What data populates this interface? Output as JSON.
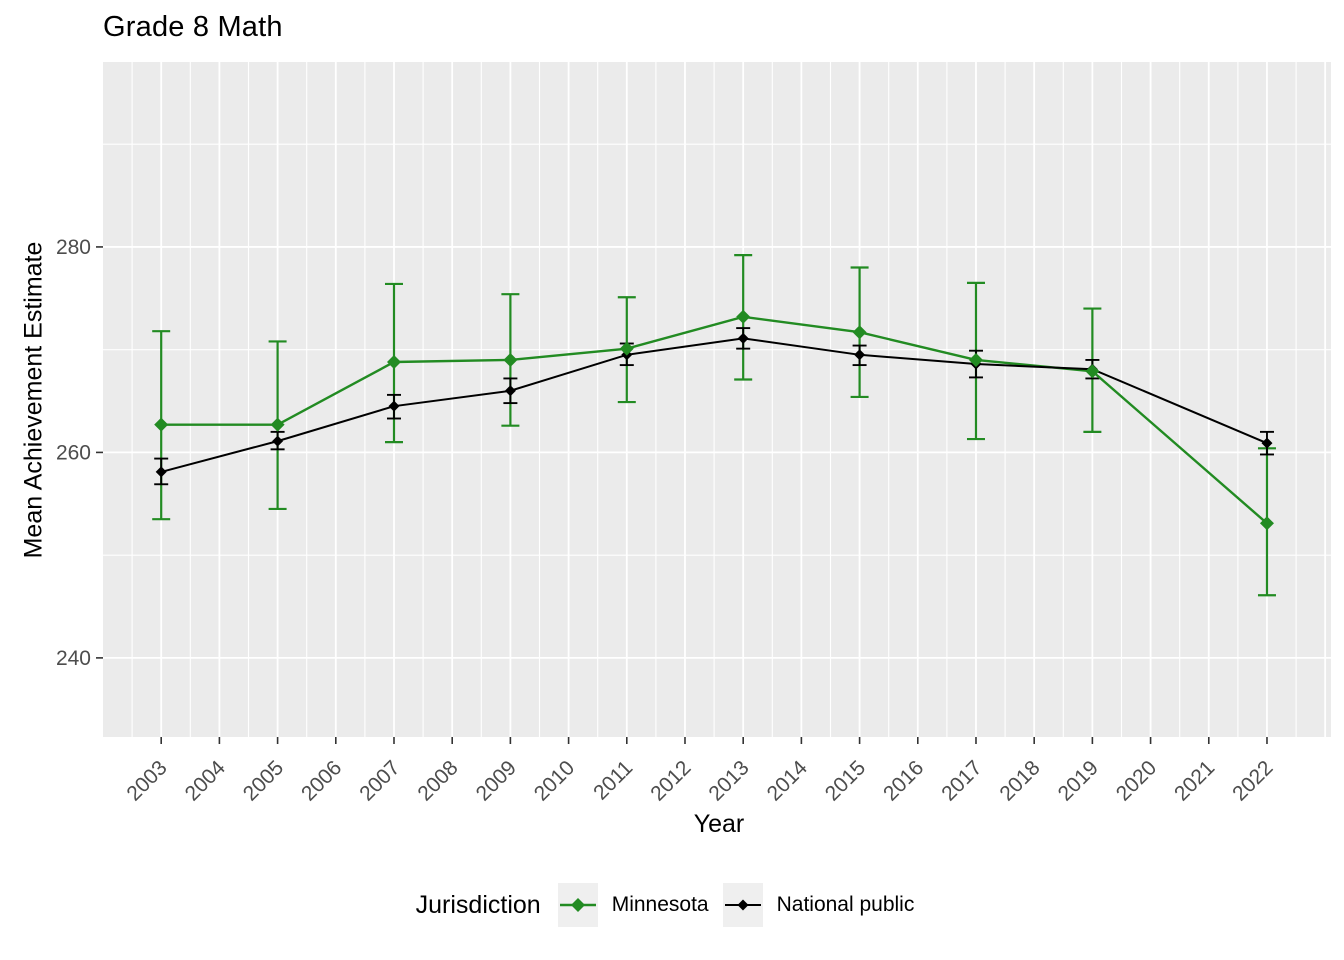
{
  "chart_data": {
    "type": "line",
    "title": "Grade 8 Math",
    "xlabel": "Year",
    "ylabel": "Mean Achievement Estimate",
    "legend": {
      "title": "Jurisdiction",
      "position": "bottom"
    },
    "x": [
      2003,
      2005,
      2007,
      2009,
      2011,
      2013,
      2015,
      2017,
      2019,
      2022
    ],
    "series": [
      {
        "name": "Minnesota",
        "color": "#228B22",
        "values": [
          262.7,
          262.7,
          268.8,
          269.0,
          270.1,
          273.2,
          271.7,
          269.0,
          267.9,
          253.1
        ],
        "ci_low": [
          253.5,
          254.5,
          261.0,
          262.6,
          264.9,
          267.1,
          265.4,
          261.3,
          262.0,
          246.1
        ],
        "ci_high": [
          271.8,
          270.8,
          276.4,
          275.4,
          275.1,
          279.2,
          278.0,
          276.5,
          274.0,
          260.4
        ]
      },
      {
        "name": "National public",
        "color": "#000000",
        "values": [
          258.1,
          261.1,
          264.5,
          266.0,
          269.5,
          271.1,
          269.5,
          268.6,
          268.1,
          260.9
        ],
        "ci_low": [
          256.9,
          260.3,
          263.3,
          264.8,
          268.5,
          270.1,
          268.5,
          267.3,
          267.2,
          259.8
        ],
        "ci_high": [
          259.4,
          262.0,
          265.6,
          267.2,
          270.6,
          272.1,
          270.4,
          269.9,
          269.0,
          262.0
        ]
      }
    ],
    "x_ticks": [
      2003,
      2004,
      2005,
      2006,
      2007,
      2008,
      2009,
      2010,
      2011,
      2012,
      2013,
      2014,
      2015,
      2016,
      2017,
      2018,
      2019,
      2020,
      2021,
      2022
    ],
    "x_grid_major": [
      2003,
      2004,
      2005,
      2006,
      2007,
      2008,
      2009,
      2010,
      2011,
      2012,
      2013,
      2014,
      2015,
      2016,
      2017,
      2018,
      2019,
      2020,
      2021,
      2022,
      2023
    ],
    "x_grid_minor": [
      2002.5,
      2003.5,
      2004.5,
      2005.5,
      2006.5,
      2007.5,
      2008.5,
      2009.5,
      2010.5,
      2011.5,
      2012.5,
      2013.5,
      2014.5,
      2015.5,
      2016.5,
      2017.5,
      2018.5,
      2019.5,
      2020.5,
      2021.5,
      2022.5
    ],
    "y_ticks": [
      240,
      260,
      280
    ],
    "y_grid_minor": [
      250,
      270,
      290
    ],
    "xlim": [
      2002,
      2023.1
    ],
    "ylim": [
      232.3,
      298.0
    ],
    "grid": true,
    "colors": {
      "panel_bg": "#EBEBEB",
      "grid": "#FFFFFF",
      "axis_text": "#4D4D4D",
      "tick_mark": "#333333"
    }
  }
}
